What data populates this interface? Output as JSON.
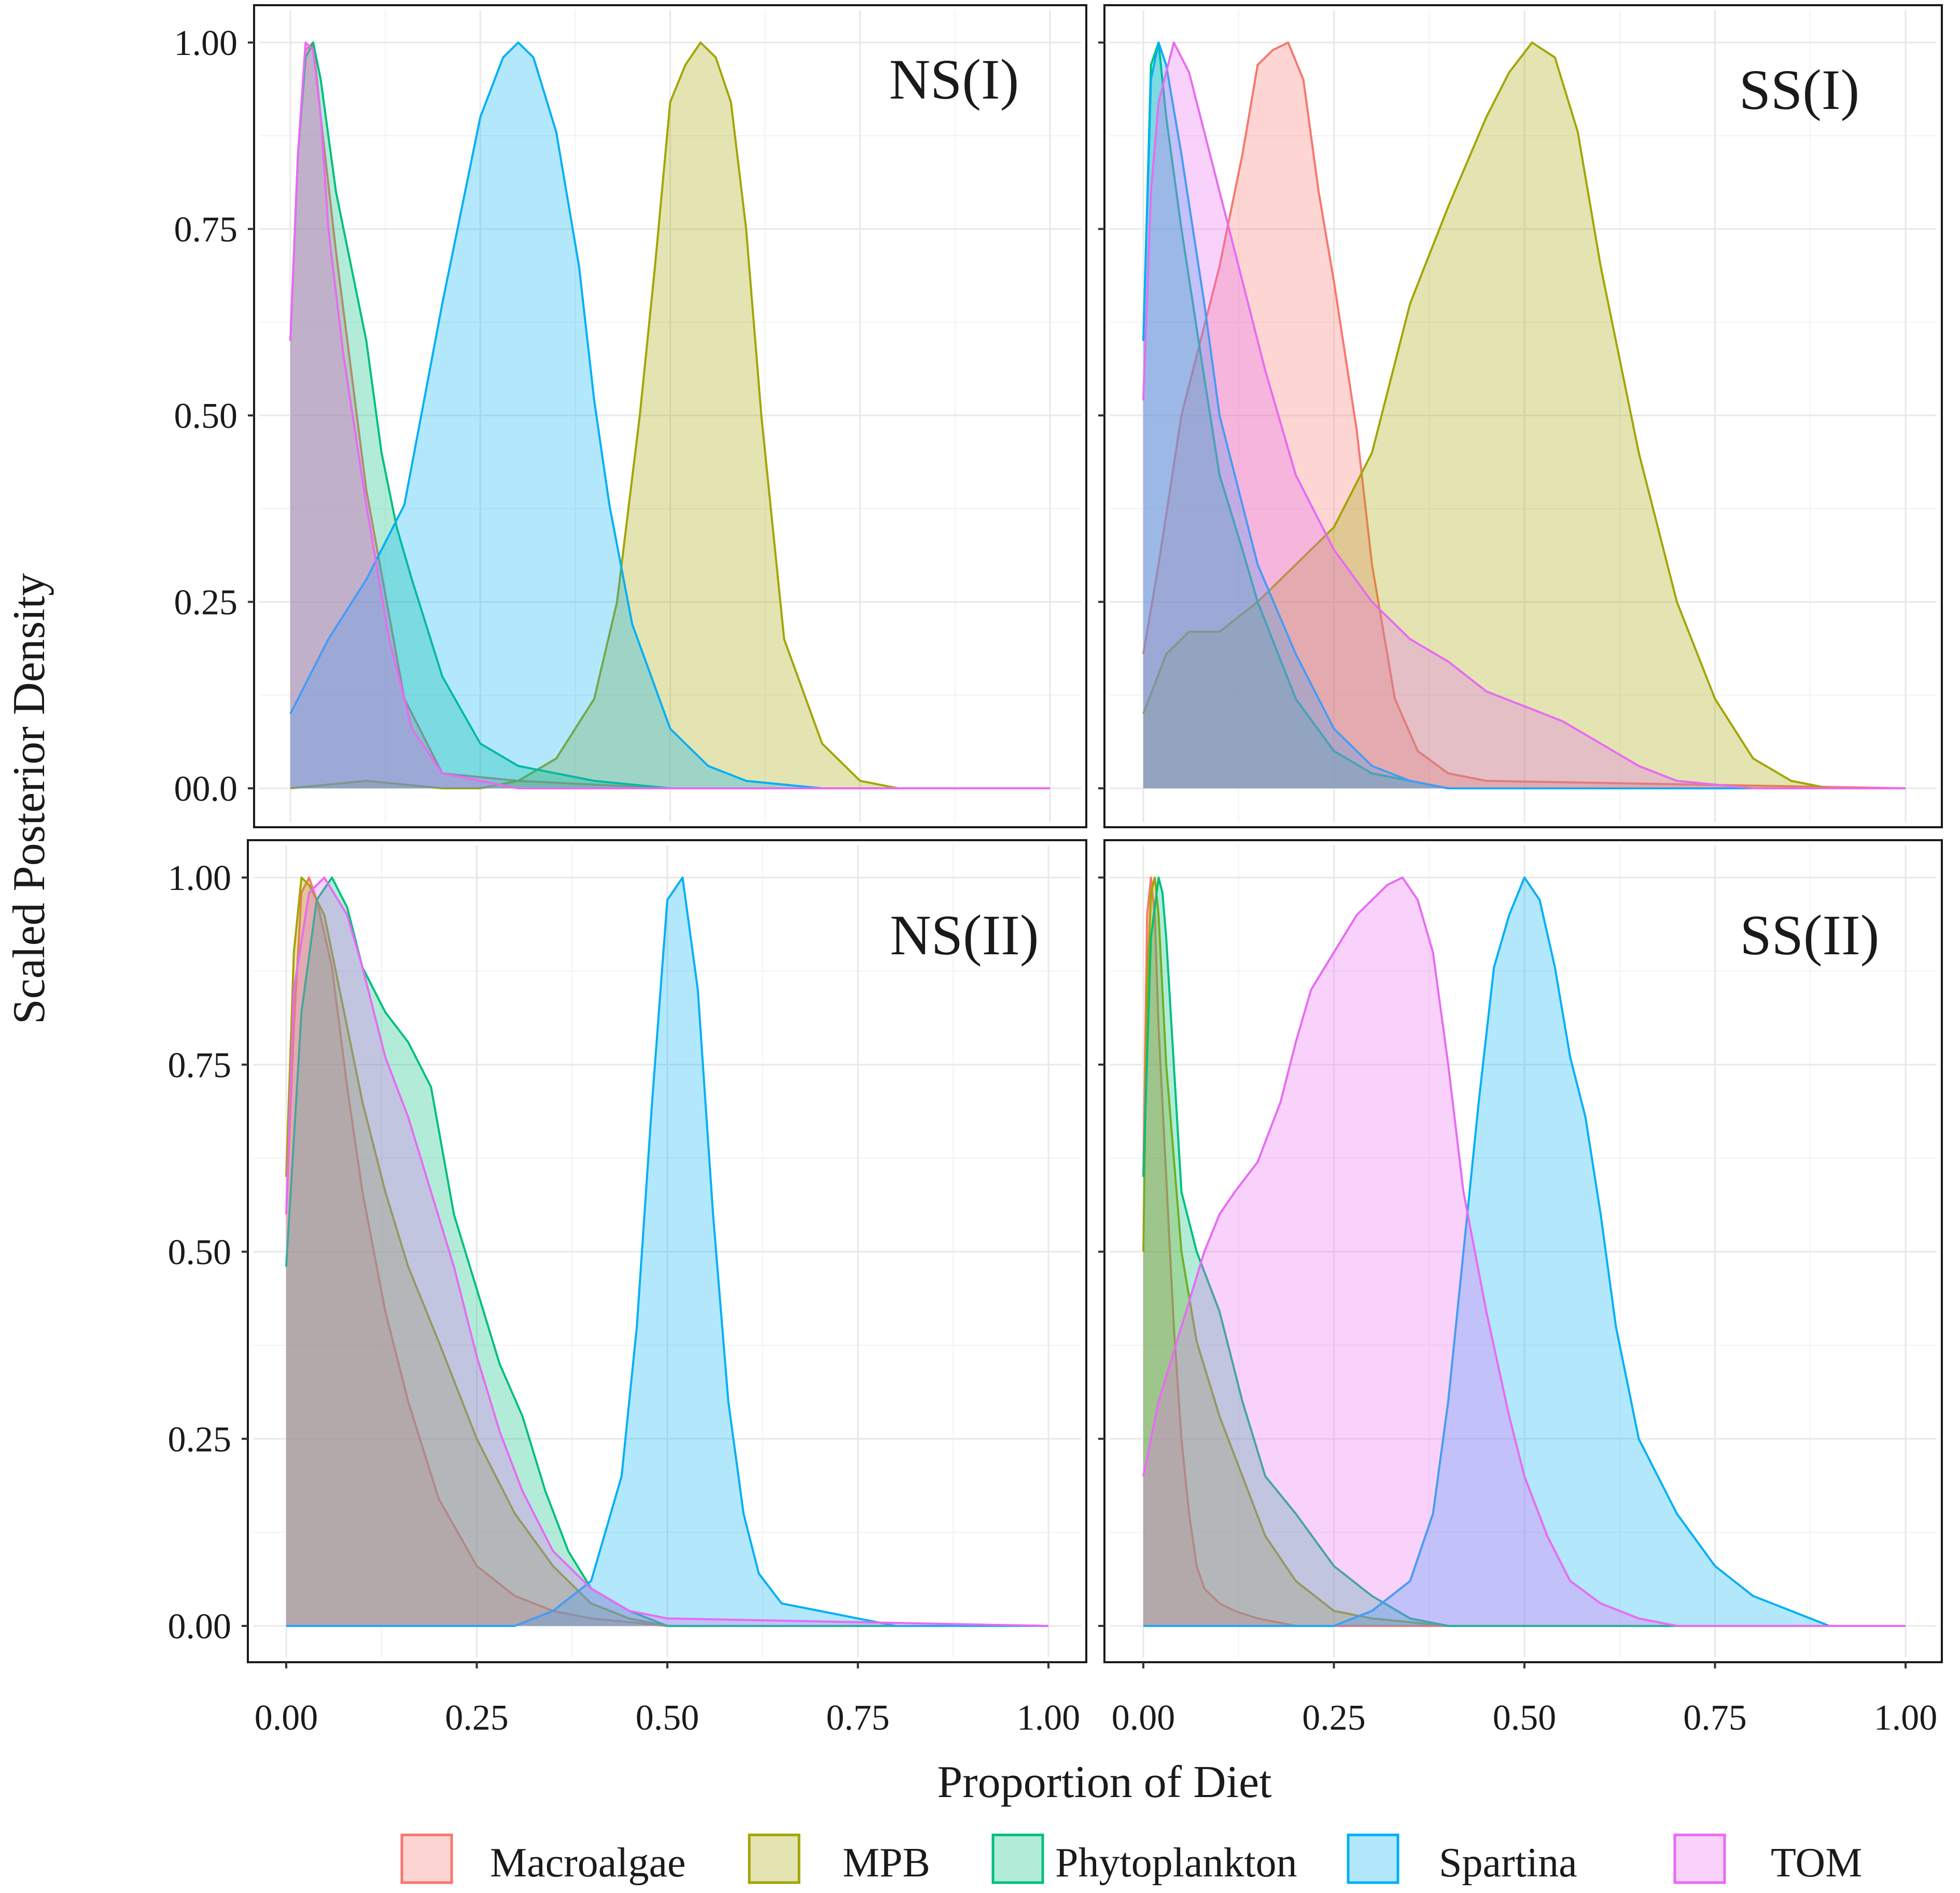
{
  "chart_data": {
    "type": "area",
    "title": "",
    "xlabel": "Proportion of Diet",
    "ylabel": "Scaled Posterior Density",
    "xlim": [
      0,
      1
    ],
    "ylim": [
      0,
      1
    ],
    "grid": true,
    "legend_position": "bottom",
    "x_tick_labels": [
      "0.00",
      "0.25",
      "0.50",
      "0.75",
      "1.00"
    ],
    "x_tick_labels_right": [
      "0.00",
      "0.25",
      "0.50",
      "0.75",
      "1.00"
    ],
    "y_tick_labels_top": [
      "00.0",
      "0.25",
      "0.50",
      "0.75",
      "1.00"
    ],
    "y_tick_labels_bottom": [
      "0.00",
      "0.25",
      "0.50",
      "0.75",
      "1.00"
    ],
    "series_styles": [
      {
        "name": "Macroalgae",
        "color": "#F8766D"
      },
      {
        "name": "MPB",
        "color": "#A3A500"
      },
      {
        "name": "Phytoplankton",
        "color": "#00BF7D"
      },
      {
        "name": "Spartina",
        "color": "#00B0F6"
      },
      {
        "name": "TOM",
        "color": "#E76BF3"
      }
    ],
    "panels": [
      {
        "label": "NS(I)",
        "series": [
          {
            "name": "Macroalgae",
            "x": [
              0,
              0.01,
              0.02,
              0.03,
              0.04,
              0.06,
              0.1,
              0.15,
              0.2,
              0.3,
              0.5,
              1
            ],
            "y": [
              0.6,
              0.85,
              0.99,
              1.0,
              0.9,
              0.72,
              0.4,
              0.12,
              0.02,
              0.01,
              0,
              0
            ]
          },
          {
            "name": "MPB",
            "x": [
              0,
              0.1,
              0.2,
              0.25,
              0.3,
              0.35,
              0.4,
              0.43,
              0.46,
              0.48,
              0.5,
              0.52,
              0.54,
              0.56,
              0.58,
              0.6,
              0.62,
              0.65,
              0.7,
              0.75,
              0.8,
              1
            ],
            "y": [
              0,
              0.01,
              0,
              0,
              0.01,
              0.04,
              0.12,
              0.25,
              0.5,
              0.7,
              0.92,
              0.97,
              1.0,
              0.98,
              0.92,
              0.75,
              0.5,
              0.2,
              0.06,
              0.01,
              0,
              0
            ]
          },
          {
            "name": "Phytoplankton",
            "x": [
              0,
              0.01,
              0.02,
              0.03,
              0.04,
              0.06,
              0.08,
              0.1,
              0.12,
              0.14,
              0.16,
              0.2,
              0.25,
              0.3,
              0.35,
              0.4,
              0.5,
              1
            ],
            "y": [
              0.6,
              0.85,
              0.98,
              1.0,
              0.95,
              0.8,
              0.7,
              0.6,
              0.45,
              0.35,
              0.28,
              0.15,
              0.06,
              0.03,
              0.02,
              0.01,
              0,
              0
            ]
          },
          {
            "name": "Spartina",
            "x": [
              0,
              0.05,
              0.1,
              0.15,
              0.2,
              0.25,
              0.28,
              0.3,
              0.32,
              0.35,
              0.38,
              0.4,
              0.42,
              0.45,
              0.5,
              0.55,
              0.6,
              0.7,
              1
            ],
            "y": [
              0.1,
              0.2,
              0.28,
              0.38,
              0.65,
              0.9,
              0.98,
              1.0,
              0.98,
              0.88,
              0.7,
              0.52,
              0.38,
              0.22,
              0.08,
              0.03,
              0.01,
              0,
              0
            ]
          },
          {
            "name": "TOM",
            "x": [
              0,
              0.01,
              0.02,
              0.03,
              0.04,
              0.05,
              0.07,
              0.1,
              0.13,
              0.16,
              0.2,
              0.25,
              0.3,
              1
            ],
            "y": [
              0.6,
              0.85,
              1.0,
              0.99,
              0.9,
              0.75,
              0.58,
              0.38,
              0.2,
              0.08,
              0.02,
              0.01,
              0,
              0
            ]
          }
        ]
      },
      {
        "label": "SS(I)",
        "series": [
          {
            "name": "Macroalgae",
            "x": [
              0,
              0.02,
              0.05,
              0.08,
              0.1,
              0.13,
              0.15,
              0.17,
              0.19,
              0.21,
              0.23,
              0.25,
              0.28,
              0.3,
              0.33,
              0.36,
              0.4,
              0.45,
              1
            ],
            "y": [
              0.18,
              0.3,
              0.5,
              0.62,
              0.7,
              0.85,
              0.97,
              0.99,
              1.0,
              0.95,
              0.8,
              0.68,
              0.48,
              0.3,
              0.12,
              0.05,
              0.02,
              0.01,
              0
            ]
          },
          {
            "name": "MPB",
            "x": [
              0,
              0.03,
              0.06,
              0.1,
              0.15,
              0.2,
              0.25,
              0.3,
              0.35,
              0.4,
              0.45,
              0.48,
              0.51,
              0.54,
              0.57,
              0.6,
              0.65,
              0.7,
              0.75,
              0.8,
              0.85,
              0.9,
              1
            ],
            "y": [
              0.1,
              0.18,
              0.21,
              0.21,
              0.25,
              0.3,
              0.35,
              0.45,
              0.65,
              0.78,
              0.9,
              0.96,
              1.0,
              0.98,
              0.88,
              0.7,
              0.45,
              0.25,
              0.12,
              0.04,
              0.01,
              0,
              0
            ]
          },
          {
            "name": "Phytoplankton",
            "x": [
              0,
              0.01,
              0.02,
              0.03,
              0.05,
              0.08,
              0.1,
              0.13,
              0.15,
              0.2,
              0.25,
              0.3,
              0.35,
              0.4,
              1
            ],
            "y": [
              0.6,
              0.97,
              1.0,
              0.9,
              0.75,
              0.55,
              0.42,
              0.32,
              0.25,
              0.12,
              0.05,
              0.02,
              0.01,
              0,
              0
            ]
          },
          {
            "name": "Spartina",
            "x": [
              0,
              0.01,
              0.02,
              0.03,
              0.05,
              0.08,
              0.1,
              0.13,
              0.15,
              0.2,
              0.25,
              0.3,
              0.35,
              0.4,
              1
            ],
            "y": [
              0.6,
              0.95,
              1.0,
              0.97,
              0.85,
              0.65,
              0.5,
              0.38,
              0.3,
              0.18,
              0.08,
              0.03,
              0.01,
              0,
              0
            ]
          },
          {
            "name": "TOM",
            "x": [
              0,
              0.01,
              0.02,
              0.04,
              0.06,
              0.08,
              0.1,
              0.13,
              0.16,
              0.2,
              0.25,
              0.3,
              0.35,
              0.4,
              0.45,
              0.5,
              0.55,
              0.6,
              0.65,
              0.7,
              0.8,
              1
            ],
            "y": [
              0.52,
              0.8,
              0.92,
              1.0,
              0.96,
              0.88,
              0.8,
              0.68,
              0.56,
              0.42,
              0.32,
              0.25,
              0.2,
              0.17,
              0.13,
              0.11,
              0.09,
              0.06,
              0.03,
              0.01,
              0,
              0
            ]
          }
        ]
      },
      {
        "label": "NS(II)",
        "series": [
          {
            "name": "Macroalgae",
            "x": [
              0,
              0.01,
              0.02,
              0.03,
              0.04,
              0.06,
              0.08,
              0.1,
              0.13,
              0.16,
              0.2,
              0.25,
              0.3,
              0.35,
              0.4,
              0.5,
              1
            ],
            "y": [
              0.55,
              0.8,
              0.98,
              1.0,
              0.97,
              0.88,
              0.72,
              0.58,
              0.42,
              0.3,
              0.17,
              0.08,
              0.04,
              0.02,
              0.01,
              0,
              0
            ]
          },
          {
            "name": "MPB",
            "x": [
              0,
              0.01,
              0.02,
              0.03,
              0.05,
              0.07,
              0.1,
              0.13,
              0.16,
              0.2,
              0.25,
              0.3,
              0.35,
              0.4,
              0.45,
              0.5,
              1
            ],
            "y": [
              0.6,
              0.9,
              1.0,
              0.99,
              0.95,
              0.85,
              0.7,
              0.58,
              0.48,
              0.38,
              0.25,
              0.15,
              0.08,
              0.03,
              0.01,
              0,
              0
            ]
          },
          {
            "name": "Phytoplankton",
            "x": [
              0,
              0.02,
              0.04,
              0.06,
              0.08,
              0.1,
              0.13,
              0.16,
              0.19,
              0.22,
              0.25,
              0.28,
              0.31,
              0.34,
              0.37,
              0.4,
              0.45,
              0.5,
              1
            ],
            "y": [
              0.48,
              0.82,
              0.97,
              1.0,
              0.96,
              0.88,
              0.82,
              0.78,
              0.72,
              0.55,
              0.45,
              0.35,
              0.28,
              0.18,
              0.1,
              0.05,
              0.02,
              0,
              0
            ]
          },
          {
            "name": "Spartina",
            "x": [
              0,
              0.3,
              0.35,
              0.4,
              0.44,
              0.46,
              0.48,
              0.5,
              0.52,
              0.54,
              0.56,
              0.58,
              0.6,
              0.62,
              0.65,
              0.7,
              0.75,
              0.8,
              1
            ],
            "y": [
              0,
              0,
              0.02,
              0.06,
              0.2,
              0.4,
              0.7,
              0.97,
              1.0,
              0.85,
              0.55,
              0.3,
              0.15,
              0.07,
              0.03,
              0.02,
              0.01,
              0,
              0
            ]
          },
          {
            "name": "TOM",
            "x": [
              0,
              0.01,
              0.03,
              0.05,
              0.08,
              0.1,
              0.13,
              0.16,
              0.19,
              0.22,
              0.25,
              0.28,
              0.31,
              0.35,
              0.4,
              0.45,
              0.5,
              1
            ],
            "y": [
              0.55,
              0.85,
              0.98,
              1.0,
              0.95,
              0.88,
              0.76,
              0.68,
              0.58,
              0.48,
              0.36,
              0.26,
              0.18,
              0.1,
              0.05,
              0.02,
              0.01,
              0
            ]
          }
        ]
      },
      {
        "label": "SS(II)",
        "series": [
          {
            "name": "Macroalgae",
            "x": [
              0,
              0.005,
              0.01,
              0.015,
              0.02,
              0.03,
              0.04,
              0.05,
              0.06,
              0.07,
              0.08,
              0.1,
              0.12,
              0.15,
              0.2,
              1
            ],
            "y": [
              0.6,
              0.95,
              1.0,
              0.95,
              0.8,
              0.6,
              0.4,
              0.25,
              0.15,
              0.08,
              0.05,
              0.03,
              0.02,
              0.01,
              0,
              0
            ]
          },
          {
            "name": "MPB",
            "x": [
              0,
              0.005,
              0.01,
              0.015,
              0.02,
              0.03,
              0.05,
              0.07,
              0.1,
              0.13,
              0.16,
              0.2,
              0.25,
              0.3,
              0.4,
              1
            ],
            "y": [
              0.5,
              0.85,
              0.98,
              1.0,
              0.95,
              0.75,
              0.5,
              0.38,
              0.28,
              0.2,
              0.12,
              0.06,
              0.02,
              0.01,
              0,
              0
            ]
          },
          {
            "name": "Phytoplankton",
            "x": [
              0,
              0.01,
              0.02,
              0.025,
              0.03,
              0.04,
              0.05,
              0.07,
              0.1,
              0.13,
              0.16,
              0.2,
              0.25,
              0.3,
              0.35,
              0.4,
              1
            ],
            "y": [
              0.6,
              0.92,
              1.0,
              0.98,
              0.92,
              0.75,
              0.58,
              0.5,
              0.42,
              0.3,
              0.2,
              0.15,
              0.08,
              0.04,
              0.01,
              0,
              0
            ]
          },
          {
            "name": "Spartina",
            "x": [
              0,
              0.25,
              0.3,
              0.35,
              0.38,
              0.4,
              0.42,
              0.44,
              0.46,
              0.48,
              0.5,
              0.52,
              0.54,
              0.56,
              0.58,
              0.6,
              0.62,
              0.65,
              0.7,
              0.75,
              0.8,
              0.85,
              0.9,
              1
            ],
            "y": [
              0,
              0,
              0.02,
              0.06,
              0.15,
              0.3,
              0.5,
              0.7,
              0.88,
              0.95,
              1.0,
              0.97,
              0.88,
              0.76,
              0.68,
              0.55,
              0.4,
              0.25,
              0.15,
              0.08,
              0.04,
              0.02,
              0,
              0
            ]
          },
          {
            "name": "TOM",
            "x": [
              0,
              0.02,
              0.05,
              0.08,
              0.1,
              0.12,
              0.15,
              0.18,
              0.2,
              0.22,
              0.25,
              0.28,
              0.3,
              0.32,
              0.34,
              0.36,
              0.38,
              0.4,
              0.42,
              0.45,
              0.48,
              0.5,
              0.53,
              0.56,
              0.6,
              0.65,
              0.7,
              1
            ],
            "y": [
              0.2,
              0.3,
              0.4,
              0.5,
              0.55,
              0.58,
              0.62,
              0.7,
              0.78,
              0.85,
              0.9,
              0.95,
              0.97,
              0.99,
              1.0,
              0.97,
              0.9,
              0.75,
              0.58,
              0.42,
              0.28,
              0.2,
              0.12,
              0.06,
              0.03,
              0.01,
              0,
              0
            ]
          }
        ]
      }
    ]
  }
}
